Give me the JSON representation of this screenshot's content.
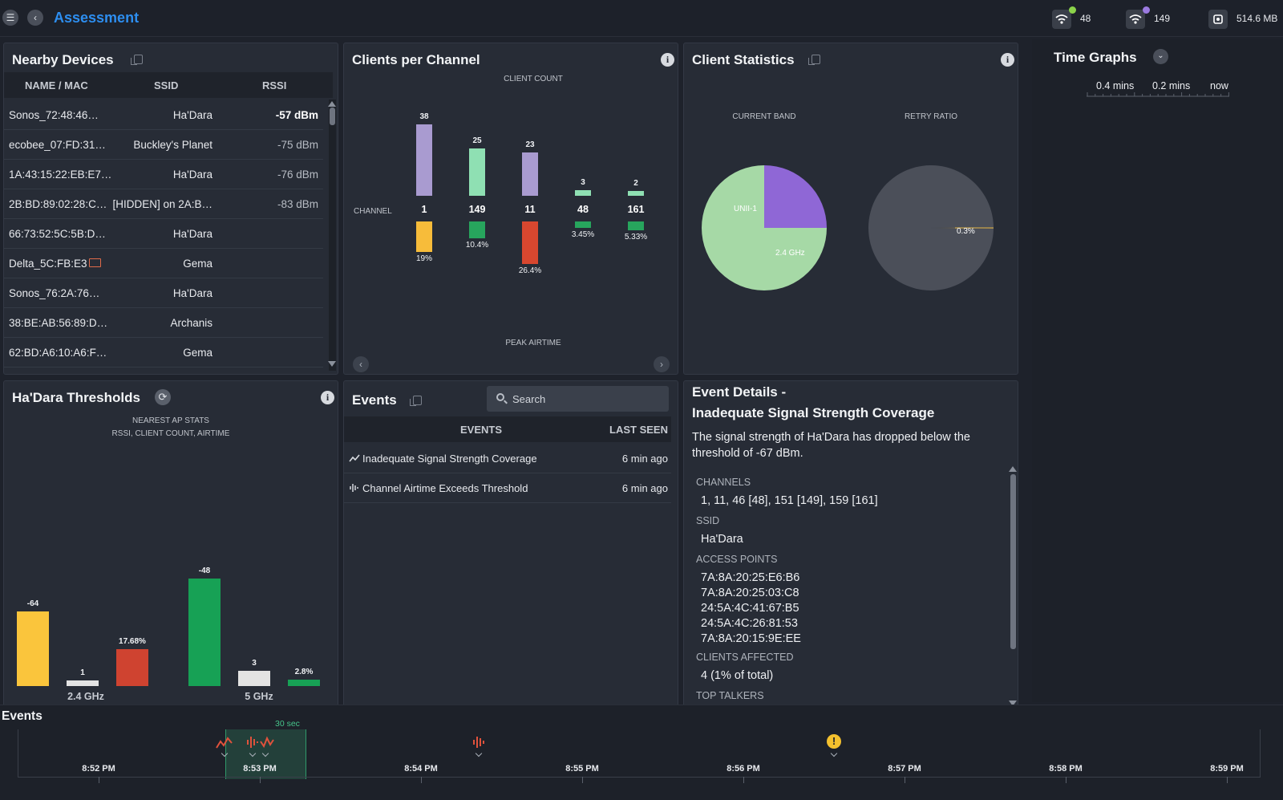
{
  "header": {
    "title": "Assessment",
    "stats": [
      {
        "icon": "wifi-icon",
        "value": "48",
        "dot_color": "#8bd34a"
      },
      {
        "icon": "wifi-icon",
        "value": "149",
        "dot_color": "#9b7ae0"
      },
      {
        "icon": "storage-icon",
        "value": "514.6 MB"
      }
    ]
  },
  "nearby_devices": {
    "title": "Nearby Devices",
    "columns": [
      "NAME / MAC",
      "SSID",
      "RSSI"
    ],
    "rows": [
      {
        "name": "Sonos_72:48:46…",
        "ssid": "Ha'Dara",
        "rssi": "-57 dBm"
      },
      {
        "name": "ecobee_07:FD:31…",
        "ssid": "Buckley's Planet",
        "rssi": "-75 dBm"
      },
      {
        "name": "1A:43:15:22:EB:E7…",
        "ssid": "Ha'Dara",
        "rssi": "-76 dBm"
      },
      {
        "name": "2B:BD:89:02:28:C…",
        "ssid": "[HIDDEN] on 2A:B…",
        "rssi": "-83 dBm"
      },
      {
        "name": "66:73:52:5C:5B:D…",
        "ssid": "Ha'Dara",
        "rssi": ""
      },
      {
        "name": "Delta_5C:FB:E3",
        "ssid": "Gema",
        "rssi": ""
      },
      {
        "name": "Sonos_76:2A:76…",
        "ssid": "Ha'Dara",
        "rssi": ""
      },
      {
        "name": "38:BE:AB:56:89:D…",
        "ssid": "Archanis",
        "rssi": ""
      },
      {
        "name": "62:BD:A6:10:A6:F…",
        "ssid": "Gema",
        "rssi": ""
      }
    ]
  },
  "clients_per_channel": {
    "title": "Clients per Channel",
    "top_caption": "CLIENT COUNT",
    "channel_caption": "CHANNEL",
    "bottom_caption": "PEAK AIRTIME"
  },
  "client_statistics": {
    "title": "Client Statistics",
    "band_caption": "CURRENT BAND",
    "retry_caption": "RETRY RATIO",
    "band_labels": [
      "UNII-1",
      "2.4 GHz"
    ],
    "retry_label": "0.3%"
  },
  "time_graphs": {
    "title": "Time Graphs",
    "labels": [
      "0.4 mins",
      "0.2 mins",
      "now"
    ]
  },
  "thresholds": {
    "title": "Ha'Dara Thresholds",
    "caption1": "NEAREST AP STATS",
    "caption2": "RSSI, CLIENT COUNT, AIRTIME",
    "band1": "2.4 GHz",
    "band2": "5 GHz"
  },
  "events": {
    "title": "Events",
    "search_placeholder": "Search",
    "columns": [
      "EVENTS",
      "LAST SEEN"
    ],
    "rows": [
      {
        "icon": "trend-icon",
        "label": "Inadequate Signal Strength Coverage",
        "seen": "6 min ago"
      },
      {
        "icon": "waveform-icon",
        "label": "Channel Airtime Exceeds Threshold",
        "seen": "6 min ago"
      }
    ]
  },
  "event_details": {
    "title1": "Event Details -",
    "title2": "Inadequate Signal Strength Coverage",
    "description": "The signal strength of Ha'Dara has dropped below the threshold of -67 dBm.",
    "channels_label": "CHANNELS",
    "channels": "1, 11, 46 [48], 151 [149], 159 [161]",
    "ssid_label": "SSID",
    "ssid": "Ha'Dara",
    "ap_label": "ACCESS POINTS",
    "access_points": [
      "7A:8A:20:25:E6:B6",
      "7A:8A:20:25:03:C8",
      "24:5A:4C:41:67:B5",
      "24:5A:4C:26:81:53",
      "7A:8A:20:15:9E:EE"
    ],
    "clients_label": "CLIENTS AFFECTED",
    "clients": "4 (1% of total)",
    "talkers_label": "TOP TALKERS"
  },
  "timeline": {
    "title": "Events",
    "window_label": "30 sec",
    "times": [
      "8:52 PM",
      "8:53 PM",
      "8:54 PM",
      "8:55 PM",
      "8:56 PM",
      "8:57 PM",
      "8:58 PM",
      "8:59 PM"
    ]
  },
  "chart_data": [
    {
      "type": "bar",
      "title": "Clients per Channel",
      "categories": [
        "1",
        "149",
        "11",
        "48",
        "161"
      ],
      "series": [
        {
          "name": "CLIENT COUNT",
          "values": [
            38,
            25,
            23,
            3,
            2
          ],
          "colors": [
            "#a99bd0",
            "#8fe0b3",
            "#a99bd0",
            "#8fe0b3",
            "#8fe0b3"
          ]
        },
        {
          "name": "PEAK AIRTIME",
          "values": [
            19,
            10.4,
            26.4,
            3.45,
            5.33
          ],
          "labels": [
            "19%",
            "10.4%",
            "26.4%",
            "3.45%",
            "5.33%"
          ],
          "colors": [
            "#f7bc3a",
            "#27a55d",
            "#d8472f",
            "#27a55d",
            "#27a55d"
          ]
        }
      ]
    },
    {
      "type": "pie",
      "title": "CURRENT BAND",
      "slices": [
        {
          "label": "UNII-1",
          "value": 75,
          "color": "#a6d9a6"
        },
        {
          "label": "2.4 GHz",
          "value": 25,
          "color": "#8f67d6"
        }
      ]
    },
    {
      "type": "pie",
      "title": "RETRY RATIO",
      "slices": [
        {
          "label": "0.3%",
          "value": 0.3,
          "color": "#e6b84a"
        },
        {
          "label": "",
          "value": 99.7,
          "color": "#4b4f59"
        }
      ]
    },
    {
      "type": "bar",
      "title": "Ha'Dara Thresholds",
      "groups": [
        "2.4 GHz",
        "5 GHz"
      ],
      "bars": [
        {
          "group": "2.4 GHz",
          "metric": "RSSI",
          "value": -64,
          "label": "-64",
          "color": "#fac53c"
        },
        {
          "group": "2.4 GHz",
          "metric": "Client Count",
          "value": 1,
          "label": "1",
          "color": "#e3e3e3"
        },
        {
          "group": "2.4 GHz",
          "metric": "Airtime",
          "value": 17.68,
          "label": "17.68%",
          "color": "#cf4330"
        },
        {
          "group": "5 GHz",
          "metric": "RSSI",
          "value": -48,
          "label": "-48",
          "color": "#17a155"
        },
        {
          "group": "5 GHz",
          "metric": "Client Count",
          "value": 3,
          "label": "3",
          "color": "#e3e3e3"
        },
        {
          "group": "5 GHz",
          "metric": "Airtime",
          "value": 2.8,
          "label": "2.8%",
          "color": "#17a155"
        }
      ]
    }
  ]
}
